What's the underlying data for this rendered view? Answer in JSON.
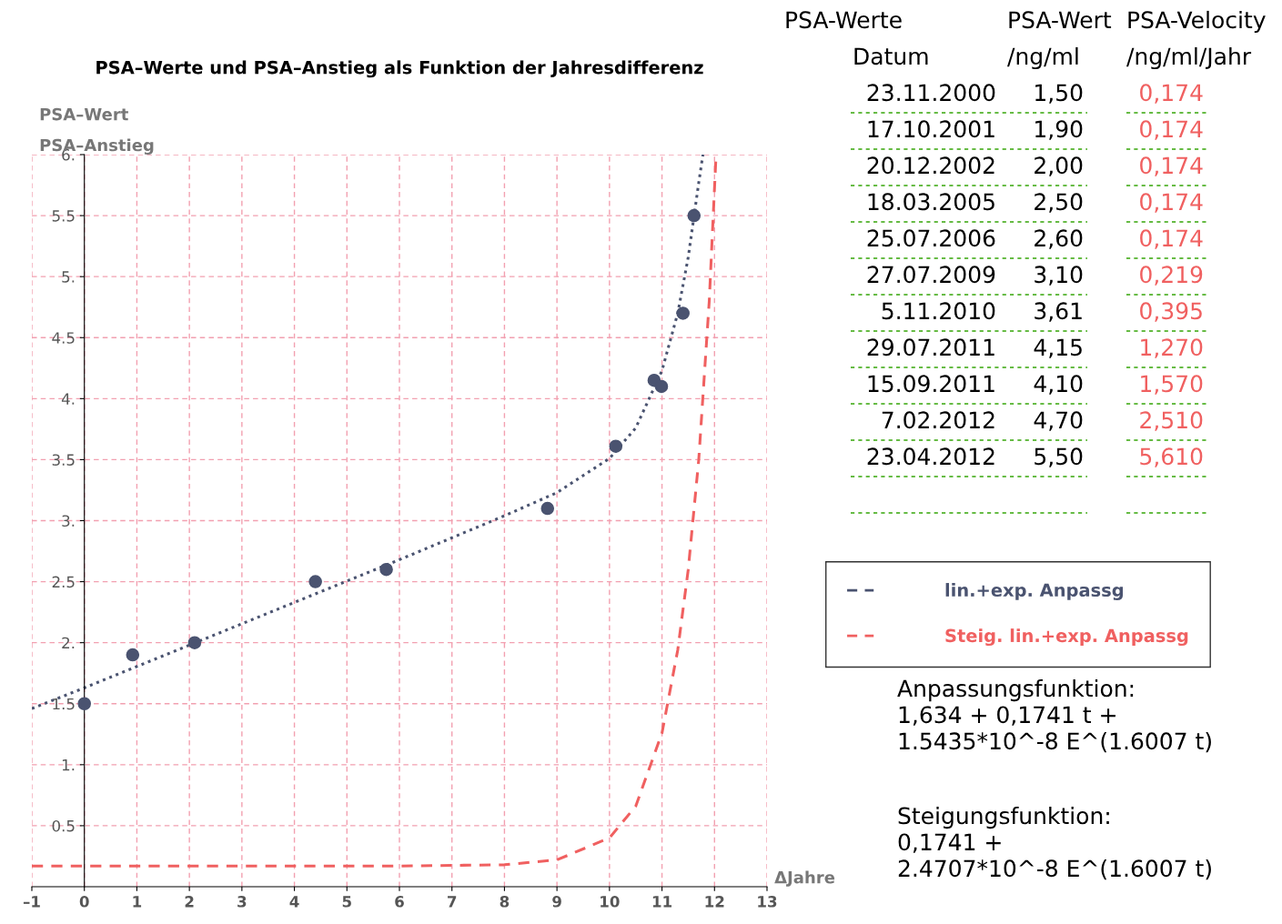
{
  "chart_data": [
    {
      "type": "line",
      "title": "PSA–Werte und PSA–Anstieg als Funktion der Jahresdifferenz",
      "xlabel": "ΔJahre",
      "ylabel": "PSA–Wert\nPSA–Anstieg",
      "xlim": [
        -1,
        13
      ],
      "xticks": [
        {
          "value": -1,
          "label": "–1"
        },
        0,
        1,
        2,
        3,
        4,
        5,
        6,
        7,
        8,
        9,
        10,
        11,
        12,
        13
      ],
      "ylim": [
        0,
        6
      ],
      "yticks": [
        {
          "value": 0.5,
          "label": "0.5"
        },
        {
          "value": 1,
          "label": "1."
        },
        {
          "value": 1.5,
          "label": "1.5"
        },
        {
          "value": 2,
          "label": "2."
        },
        {
          "value": 2.5,
          "label": "2.5"
        },
        {
          "value": 3,
          "label": "3."
        },
        {
          "value": 3.5,
          "label": "3.5"
        },
        {
          "value": 4,
          "label": "4."
        },
        {
          "value": 4.5,
          "label": "4.5"
        },
        {
          "value": 5,
          "label": "5."
        },
        {
          "value": 5.5,
          "label": "5.5"
        },
        {
          "value": 6,
          "label": "6."
        }
      ],
      "grid": true,
      "legend": "right",
      "series": [
        {
          "type": "scatter",
          "color": "#4a5370",
          "marker": "circle",
          "x": [
            0,
            0.92,
            2.1,
            4.4,
            5.75,
            8.82,
            10.12,
            10.85,
            10.99,
            11.4,
            11.61
          ],
          "values": [
            1.5,
            1.9,
            2.0,
            2.5,
            2.6,
            3.1,
            3.61,
            4.15,
            4.1,
            4.7,
            5.5
          ]
        },
        {
          "type": "line",
          "name": "lin.+exp. Anpassg",
          "color": "#4a5370",
          "line_style": "dotted",
          "x": [
            -1,
            0,
            2,
            4,
            6,
            8,
            9,
            10,
            10.5,
            11,
            11.3,
            11.5,
            11.7,
            11.78
          ],
          "values": [
            1.46,
            1.63,
            1.98,
            2.33,
            2.68,
            3.04,
            3.23,
            3.51,
            3.76,
            4.23,
            4.7,
            5.16,
            5.77,
            6.0
          ]
        },
        {
          "type": "line",
          "name": "Steig. lin.+exp. Anpassg",
          "color": "#f06060",
          "line_style": "dashed",
          "x": [
            -1,
            0,
            2,
            4,
            6,
            8,
            9,
            10,
            10.5,
            11,
            11.3,
            11.5,
            11.7,
            11.9,
            12.03
          ],
          "values": [
            0.17,
            0.17,
            0.17,
            0.17,
            0.17,
            0.18,
            0.22,
            0.4,
            0.66,
            1.26,
            1.94,
            2.6,
            3.5,
            4.8,
            6.0
          ]
        }
      ],
      "annotations": [
        "Anpassungsfunktion:\n1,634 + 0,1741 t +\n1.5435*10^-8 E^(1.6007 t)",
        "Steigungsfunktion:\n0,1741 +\n2.4707*10^-8 E^(1.6007 t)"
      ]
    },
    {
      "type": "other",
      "annotations": [
        "PSA-Werte",
        "PSA-Wert",
        "PSA-Velocity",
        "Datum",
        "/ng/ml",
        "/ng/ml/Jahr",
        "23.11.2000",
        "1,50",
        "0,174",
        "17.10.2001",
        "1,90",
        "0,174",
        "20.12.2002",
        "2,00",
        "0,174",
        "18.03.2005",
        "2,50",
        "0,174",
        "25.07.2006",
        "2,60",
        "0,174",
        "27.07.2009",
        "3,10",
        "0,219",
        "5.11.2010",
        "3,61",
        "0,395",
        "29.07.2011",
        "4,15",
        "1,270",
        "15.09.2011",
        "4,10",
        "1,570",
        "7.02.2012",
        "4,70",
        "2,510",
        "23.04.2012",
        "5,50",
        "5,610"
      ]
    }
  ]
}
